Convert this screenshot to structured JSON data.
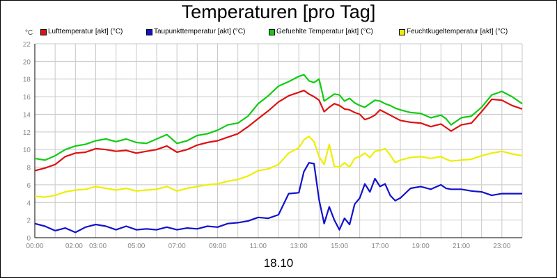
{
  "title": "Temperaturen [pro Tag]",
  "unit_label": "°C",
  "date_label": "18.10",
  "legend": [
    {
      "label": "Lufttemperatur [akt] (°C)",
      "color": "#dd1111"
    },
    {
      "label": "Taupunkttemperatur [akt] (°C)",
      "color": "#1111cc"
    },
    {
      "label": "Gefuehlte Temperatur [akt] (°C)",
      "color": "#11cc11"
    },
    {
      "label": "Feuchtkugeltemperatur [akt] (°C)",
      "color": "#eeee00"
    }
  ],
  "chart_data": {
    "type": "line",
    "title": "Temperaturen [pro Tag]",
    "xlabel": "18.10",
    "ylabel": "°C",
    "ylim": [
      0,
      22
    ],
    "xlim": [
      0,
      24
    ],
    "y_ticks": [
      "0",
      "2",
      "4",
      "6",
      "8",
      "10",
      "12",
      "14",
      "16",
      "18",
      "20",
      "22"
    ],
    "x_ticks": [
      {
        "label": "00:00",
        "hour": 0
      },
      {
        "label": "02:00",
        "hour": 2
      },
      {
        "label": "03:00",
        "hour": 3
      },
      {
        "label": "05:00",
        "hour": 5
      },
      {
        "label": "07:00",
        "hour": 7
      },
      {
        "label": "09:00",
        "hour": 9
      },
      {
        "label": "11:00",
        "hour": 11
      },
      {
        "label": "13:00",
        "hour": 13
      },
      {
        "label": "15:00",
        "hour": 15
      },
      {
        "label": "17:00",
        "hour": 17
      },
      {
        "label": "19:00",
        "hour": 19
      },
      {
        "label": "21:00",
        "hour": 21
      },
      {
        "label": "23:00",
        "hour": 23
      }
    ],
    "grid": true,
    "x": [
      0,
      0.5,
      1,
      1.5,
      2,
      2.5,
      3,
      3.5,
      4,
      4.5,
      5,
      5.5,
      6,
      6.5,
      7,
      7.5,
      8,
      8.5,
      9,
      9.5,
      10,
      10.5,
      11,
      11.5,
      12,
      12.5,
      13,
      13.25,
      13.5,
      13.75,
      14,
      14.25,
      14.5,
      14.75,
      15,
      15.25,
      15.5,
      15.75,
      16,
      16.25,
      16.5,
      16.75,
      17,
      17.25,
      17.5,
      17.75,
      18,
      18.5,
      19,
      19.5,
      20,
      20.25,
      20.5,
      21,
      21.5,
      22,
      22.5,
      23,
      23.5,
      24
    ],
    "series": [
      {
        "name": "Lufttemperatur [akt] (°C)",
        "color": "#dd1111",
        "values": [
          7.6,
          7.9,
          8.3,
          9.2,
          9.6,
          9.7,
          10.1,
          10.0,
          9.8,
          9.9,
          9.6,
          9.8,
          10.0,
          10.4,
          9.7,
          10.0,
          10.5,
          10.8,
          11.0,
          11.4,
          11.8,
          12.6,
          13.5,
          14.4,
          15.4,
          16.1,
          16.5,
          16.7,
          16.3,
          16.0,
          15.6,
          14.3,
          14.8,
          15.2,
          15.0,
          14.6,
          14.5,
          14.2,
          14.0,
          13.4,
          13.6,
          13.9,
          14.5,
          14.2,
          13.9,
          13.6,
          13.3,
          13.1,
          13.0,
          12.6,
          12.9,
          12.5,
          12.1,
          12.8,
          13.0,
          14.3,
          15.7,
          15.6,
          15.0,
          14.6
        ]
      },
      {
        "name": "Taupunkttemperatur [akt] (°C)",
        "color": "#1111cc",
        "values": [
          1.6,
          1.3,
          0.8,
          1.1,
          0.6,
          1.2,
          1.5,
          1.3,
          0.9,
          1.3,
          0.9,
          1.0,
          0.9,
          1.2,
          0.9,
          1.1,
          1.0,
          1.3,
          1.2,
          1.6,
          1.7,
          1.9,
          2.3,
          2.2,
          2.6,
          5.0,
          5.1,
          7.5,
          8.5,
          8.4,
          4.3,
          1.6,
          3.5,
          2.0,
          0.9,
          2.2,
          1.5,
          3.8,
          4.5,
          6.1,
          5.2,
          6.7,
          5.8,
          6.1,
          4.8,
          4.2,
          4.5,
          5.6,
          5.8,
          5.5,
          6.0,
          5.6,
          5.5,
          5.5,
          5.3,
          5.2,
          4.8,
          5.0,
          5.0,
          5.0
        ]
      },
      {
        "name": "Gefuehlte Temperatur [akt] (°C)",
        "color": "#11cc11",
        "values": [
          9.0,
          8.8,
          9.3,
          10.0,
          10.4,
          10.6,
          11.0,
          11.2,
          10.9,
          11.2,
          10.8,
          10.7,
          11.2,
          11.7,
          10.7,
          11.0,
          11.6,
          11.8,
          12.2,
          12.8,
          13.0,
          13.8,
          15.2,
          16.1,
          17.2,
          17.7,
          18.3,
          18.5,
          17.8,
          17.6,
          18.0,
          15.5,
          15.9,
          16.3,
          16.2,
          15.5,
          15.8,
          15.3,
          15.0,
          14.8,
          15.2,
          15.6,
          15.5,
          15.2,
          15.0,
          14.7,
          14.5,
          14.2,
          14.1,
          13.6,
          13.9,
          13.5,
          12.8,
          13.6,
          13.8,
          14.8,
          16.2,
          16.6,
          16.0,
          15.2
        ]
      },
      {
        "name": "Feuchtkugeltemperatur [akt] (°C)",
        "color": "#eeee00",
        "values": [
          4.7,
          4.6,
          4.8,
          5.2,
          5.4,
          5.5,
          5.8,
          5.6,
          5.4,
          5.6,
          5.3,
          5.4,
          5.5,
          5.8,
          5.3,
          5.6,
          5.8,
          6.0,
          6.1,
          6.4,
          6.6,
          7.0,
          7.6,
          7.8,
          8.3,
          9.6,
          10.2,
          11.1,
          11.5,
          10.9,
          9.2,
          8.3,
          10.6,
          8.1,
          8.0,
          8.5,
          8.0,
          9.0,
          9.2,
          9.6,
          9.1,
          9.8,
          9.9,
          10.1,
          9.4,
          8.5,
          8.8,
          9.1,
          9.2,
          9.0,
          9.2,
          8.9,
          8.7,
          8.8,
          8.9,
          9.3,
          9.6,
          9.8,
          9.5,
          9.3
        ]
      }
    ]
  }
}
